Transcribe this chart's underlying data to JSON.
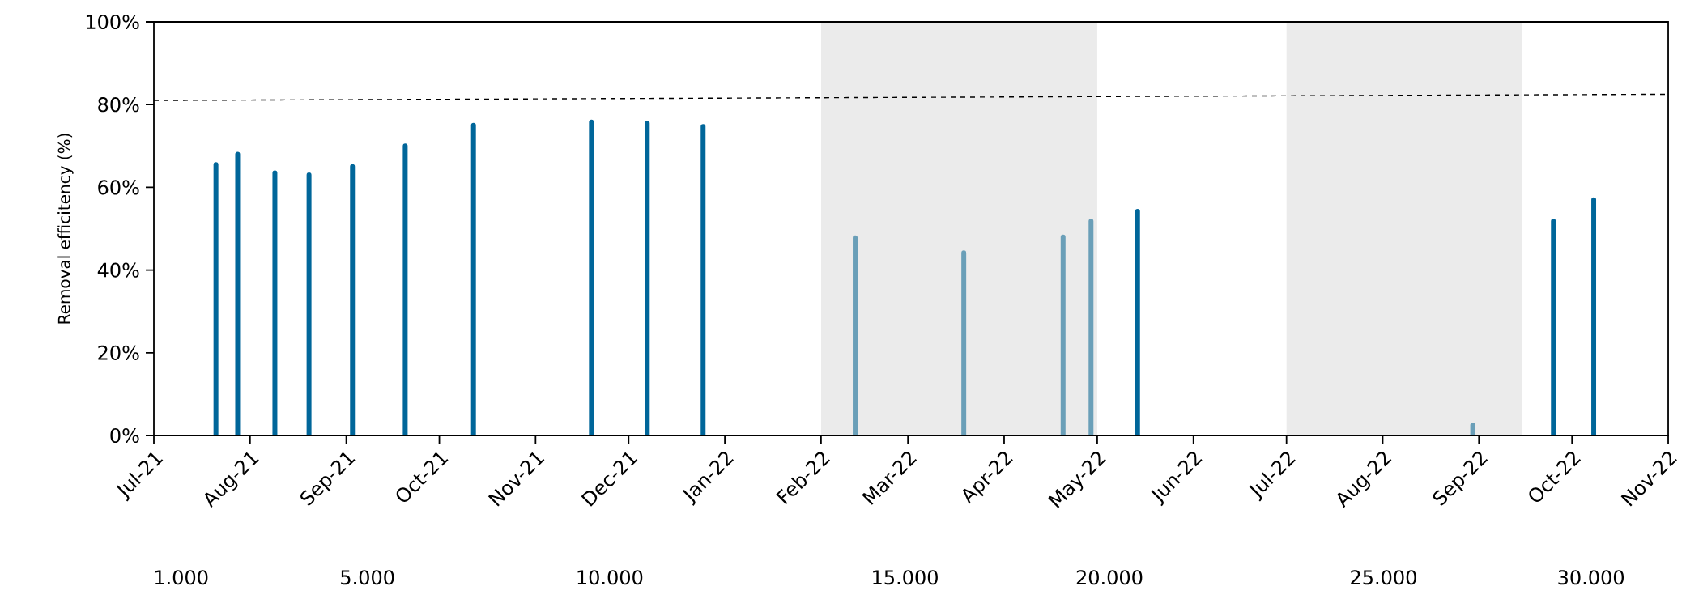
{
  "chart_data": {
    "type": "bar",
    "ylabel": "Removal efficitency (%)",
    "xlim": [
      "2021-07-01",
      "2022-11-01"
    ],
    "xticks": [
      {
        "value": "2021-07-01",
        "label": "Jul-21"
      },
      {
        "value": "2021-08-01",
        "label": "Aug-21"
      },
      {
        "value": "2021-09-01",
        "label": "Sep-21"
      },
      {
        "value": "2021-10-01",
        "label": "Oct-21"
      },
      {
        "value": "2021-11-01",
        "label": "Nov-21"
      },
      {
        "value": "2021-12-01",
        "label": "Dec-21"
      },
      {
        "value": "2022-01-01",
        "label": "Jan-22"
      },
      {
        "value": "2022-02-01",
        "label": "Feb-22"
      },
      {
        "value": "2022-03-01",
        "label": "Mar-22"
      },
      {
        "value": "2022-04-01",
        "label": "Apr-22"
      },
      {
        "value": "2022-05-01",
        "label": "May-22"
      },
      {
        "value": "2022-06-01",
        "label": "Jun-22"
      },
      {
        "value": "2022-07-01",
        "label": "Jul-22"
      },
      {
        "value": "2022-08-01",
        "label": "Aug-22"
      },
      {
        "value": "2022-09-01",
        "label": "Sep-22"
      },
      {
        "value": "2022-10-01",
        "label": "Oct-22"
      },
      {
        "value": "2022-11-01",
        "label": "Nov-22"
      }
    ],
    "annotations": [
      "1.000",
      "5.000",
      "10.000",
      "15.000",
      "20.000",
      "25.000",
      "30.000"
    ],
    "ylim": [
      0,
      100
    ],
    "yticks": [
      {
        "value": 0,
        "label": "0%"
      },
      {
        "value": 20,
        "label": "20%"
      },
      {
        "value": 40,
        "label": "40%"
      },
      {
        "value": 60,
        "label": "60%"
      },
      {
        "value": 80,
        "label": "80%"
      },
      {
        "value": 100,
        "label": "100%"
      }
    ],
    "bands": [
      {
        "axis": "x",
        "from": "2022-02-01",
        "to": "2022-05-01",
        "color": "#ebebeb"
      },
      {
        "axis": "x",
        "from": "2022-07-01",
        "to": "2022-09-15",
        "color": "#ebebeb"
      }
    ],
    "series": [
      {
        "color": "#00669a",
        "x": [
          "2021-07-21",
          "2021-07-28",
          "2021-08-09",
          "2021-08-20",
          "2021-09-03",
          "2021-09-20",
          "2021-10-12",
          "2021-11-19",
          "2021-12-07",
          "2021-12-25",
          "2022-05-14",
          "2022-09-25",
          "2022-10-08"
        ],
        "values": [
          65.5,
          68,
          63.5,
          63,
          65,
          70,
          75,
          75.8,
          75.5,
          74.7,
          54.2,
          51.8,
          57
        ]
      },
      {
        "color": "#6a9fb8",
        "x": [
          "2022-02-12",
          "2022-03-19",
          "2022-04-20",
          "2022-04-29",
          "2022-08-30"
        ],
        "values": [
          47.8,
          44.2,
          48,
          51.8,
          2.5
        ]
      },
      {
        "type": "line",
        "color": "#000000",
        "line_style": "dashed",
        "marker": "none",
        "x": [
          "2021-07-01",
          "2022-11-01"
        ],
        "values": [
          81,
          82.5
        ]
      }
    ]
  }
}
